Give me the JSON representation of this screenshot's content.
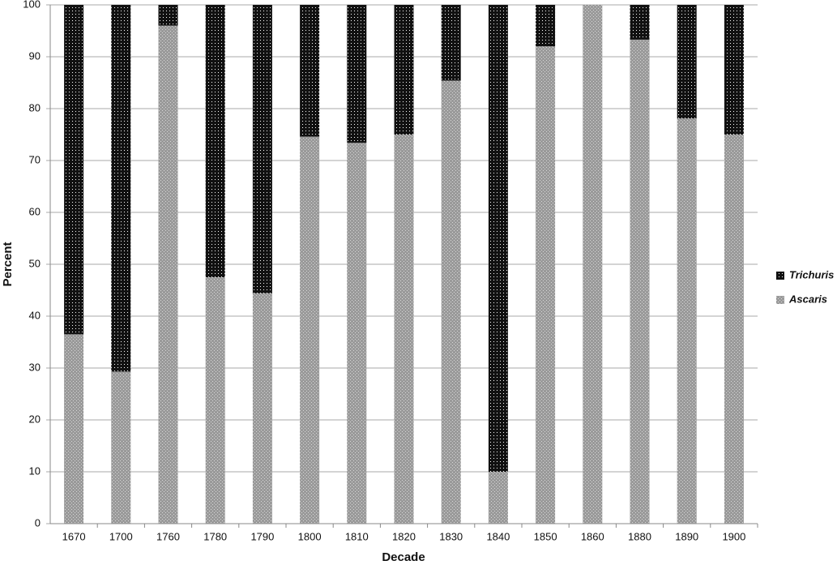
{
  "chart_data": {
    "type": "stacked-bar",
    "xlabel": "Decade",
    "ylabel": "Percent",
    "categories": [
      "1670",
      "1700",
      "1760",
      "1780",
      "1790",
      "1800",
      "1810",
      "1820",
      "1830",
      "1840",
      "1850",
      "1860",
      "1880",
      "1890",
      "1900"
    ],
    "series": [
      {
        "name": "Ascaris",
        "color": "#9a9a9a",
        "values": [
          36.5,
          29.3,
          96,
          47.5,
          44.4,
          74.6,
          73.4,
          75,
          85.4,
          10,
          92,
          100,
          93.3,
          78.1,
          75
        ]
      },
      {
        "name": "Trichuris",
        "color": "#111111",
        "values": [
          63.5,
          70.7,
          4,
          52.5,
          55.6,
          25.4,
          26.6,
          25,
          14.6,
          90,
          8,
          0,
          6.7,
          21.9,
          25
        ]
      }
    ],
    "ylim": [
      0,
      100
    ],
    "yticks": [
      0,
      10,
      20,
      30,
      40,
      50,
      60,
      70,
      80,
      90,
      100
    ],
    "grid": true,
    "legend": "right"
  }
}
